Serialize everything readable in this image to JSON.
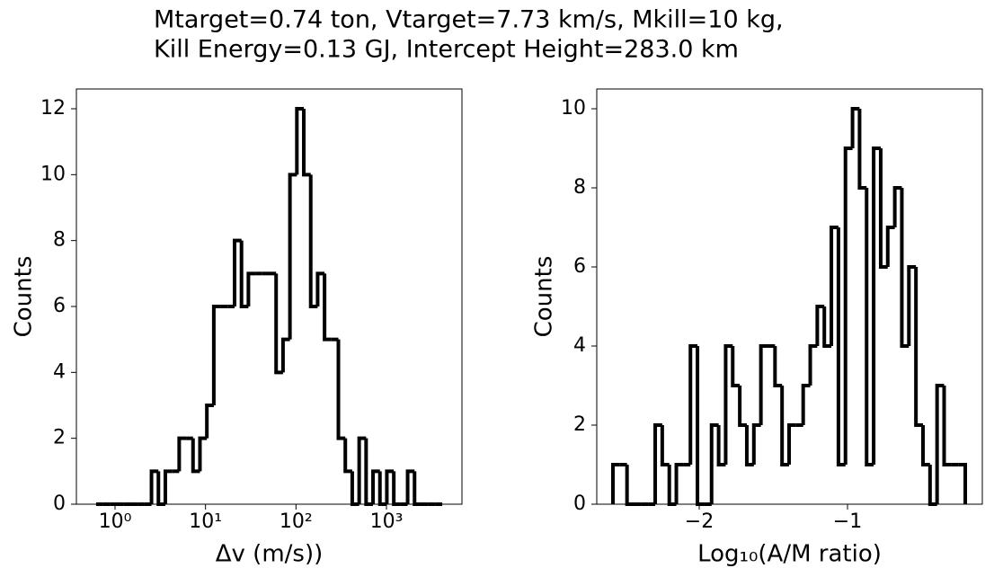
{
  "title": [
    "Mtarget=0.74 ton, Vtarget=7.73 km/s, Mkill=10 kg,",
    "Kill Energy=0.13 GJ, Intercept Height=283.0 km"
  ],
  "chart_data": [
    {
      "type": "histogram",
      "xlabel": "Δv (m/s))",
      "ylabel": "Counts",
      "xscale": "log",
      "color": "#000000",
      "bins": [
        0.618,
        0.737,
        0.879,
        1.048,
        1.25,
        1.491,
        1.778,
        2.121,
        2.529,
        3.016,
        3.597,
        4.29,
        5.117,
        6.102,
        7.278,
        8.68,
        10.35,
        12.35,
        14.73,
        17.56,
        20.95,
        24.98,
        29.79,
        35.53,
        42.38,
        50.54,
        60.28,
        71.89,
        85.74,
        102.3,
        122.0,
        145.5,
        173.5,
        206.9,
        246.8,
        294.3,
        351.0,
        418.6,
        499.3,
        595.5,
        710.2,
        847.0,
        1010,
        1205,
        1437,
        1714,
        2044,
        2438,
        2907,
        3467,
        4135
      ],
      "counts": [
        0,
        0,
        0,
        0,
        0,
        0,
        0,
        0,
        1,
        0,
        1,
        1,
        2,
        2,
        1,
        2,
        3,
        6,
        6,
        6,
        8,
        6,
        7,
        7,
        7,
        7,
        4,
        5,
        10,
        12,
        10,
        6,
        7,
        5,
        5,
        2,
        1,
        0,
        2,
        0,
        1,
        0,
        1,
        0,
        0,
        1,
        0,
        0,
        0,
        0
      ],
      "xlim": [
        0.374,
        6830
      ],
      "ylim": [
        0,
        12.6
      ],
      "xticks": [
        {
          "value": 1,
          "label": "10⁰"
        },
        {
          "value": 10,
          "label": "10¹"
        },
        {
          "value": 100,
          "label": "10²"
        },
        {
          "value": 1000,
          "label": "10³"
        }
      ],
      "yticks": [
        0,
        2,
        4,
        6,
        8,
        10,
        12
      ]
    },
    {
      "type": "histogram",
      "xlabel": "Log₁₀(A/M ratio)",
      "ylabel": "Counts",
      "xscale": "linear",
      "color": "#000000",
      "bins": [
        -2.582,
        -2.5345,
        -2.487,
        -2.4394,
        -2.3919,
        -2.3444,
        -2.2969,
        -2.2494,
        -2.2018,
        -2.1543,
        -2.1068,
        -2.0593,
        -2.0118,
        -1.9642,
        -1.9167,
        -1.8692,
        -1.8217,
        -1.7742,
        -1.7266,
        -1.6791,
        -1.6316,
        -1.5841,
        -1.5366,
        -1.489,
        -1.4415,
        -1.394,
        -1.3465,
        -1.299,
        -1.2514,
        -1.2039,
        -1.1564,
        -1.1089,
        -1.0614,
        -1.0138,
        -0.9663,
        -0.9188,
        -0.8713,
        -0.8238,
        -0.7762,
        -0.7287,
        -0.6812,
        -0.6337,
        -0.5862,
        -0.5386,
        -0.4911,
        -0.4436,
        -0.3961,
        -0.3486,
        -0.301,
        -0.2535,
        -0.206
      ],
      "counts": [
        1,
        1,
        0,
        0,
        0,
        0,
        2,
        1,
        0,
        1,
        1,
        4,
        0,
        0,
        2,
        1,
        4,
        3,
        2,
        1,
        2,
        4,
        4,
        3,
        1,
        2,
        2,
        3,
        4,
        5,
        4,
        7,
        1,
        9,
        10,
        8,
        1,
        9,
        6,
        7,
        8,
        4,
        6,
        2,
        1,
        0,
        3,
        1,
        1,
        1
      ],
      "xlim": [
        -2.691,
        -0.091
      ],
      "ylim": [
        0,
        10.5
      ],
      "xticks": [
        {
          "value": -2,
          "label": "−2"
        },
        {
          "value": -1,
          "label": "−1"
        }
      ],
      "yticks": [
        0,
        2,
        4,
        6,
        8,
        10
      ]
    }
  ]
}
